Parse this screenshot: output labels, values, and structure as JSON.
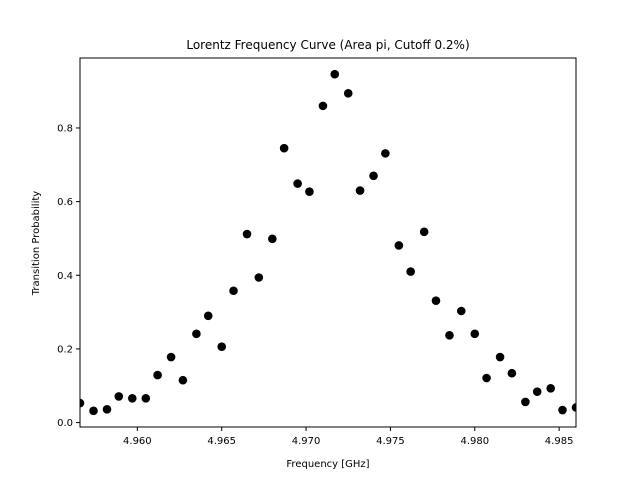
{
  "chart_data": {
    "type": "scatter",
    "title": "Lorentz Frequency Curve (Area pi, Cutoff 0.2%)",
    "xlabel": "Frequency [GHz]",
    "ylabel": "Transition Probability",
    "xlim": [
      4.9566,
      4.986
    ],
    "ylim": [
      -0.012,
      0.99
    ],
    "xticks": [
      4.96,
      4.965,
      4.97,
      4.975,
      4.98,
      4.985
    ],
    "xtick_labels": [
      "4.960",
      "4.965",
      "4.970",
      "4.975",
      "4.980",
      "4.985"
    ],
    "yticks": [
      0.0,
      0.2,
      0.4,
      0.6,
      0.8
    ],
    "ytick_labels": [
      "0.0",
      "0.2",
      "0.4",
      "0.6",
      "0.8"
    ],
    "grid": false,
    "marker_color": "#000000",
    "x": [
      4.9566,
      4.9574,
      4.9582,
      4.9589,
      4.9597,
      4.9605,
      4.9612,
      4.962,
      4.9627,
      4.9635,
      4.9642,
      4.965,
      4.9657,
      4.9665,
      4.9672,
      4.968,
      4.9687,
      4.9695,
      4.9702,
      4.971,
      4.9717,
      4.9725,
      4.9732,
      4.974,
      4.9747,
      4.9755,
      4.9762,
      4.977,
      4.9777,
      4.9785,
      4.9792,
      4.98,
      4.9807,
      4.9815,
      4.9822,
      4.983,
      4.9837,
      4.9845,
      4.9852,
      4.986
    ],
    "y": [
      0.053,
      0.032,
      0.036,
      0.071,
      0.066,
      0.066,
      0.129,
      0.178,
      0.115,
      0.241,
      0.29,
      0.206,
      0.358,
      0.512,
      0.394,
      0.499,
      0.745,
      0.649,
      0.627,
      0.86,
      0.946,
      0.894,
      0.63,
      0.67,
      0.731,
      0.481,
      0.41,
      0.518,
      0.331,
      0.237,
      0.303,
      0.241,
      0.121,
      0.178,
      0.134,
      0.056,
      0.084,
      0.093,
      0.034,
      0.041
    ]
  }
}
